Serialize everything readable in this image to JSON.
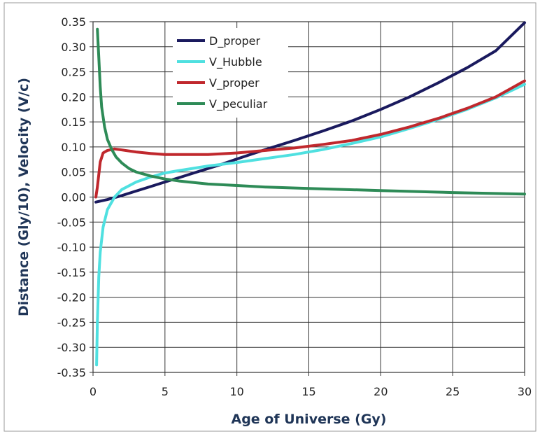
{
  "chart_data": {
    "type": "line",
    "title": "",
    "xlabel": "Age of Universe (Gy)",
    "ylabel": "Distance (Gly/10),  Velocity (V/c)",
    "xlim": [
      0,
      30
    ],
    "ylim": [
      -0.35,
      0.35
    ],
    "x_ticks": [
      "0",
      "5",
      "10",
      "15",
      "20",
      "25",
      "30"
    ],
    "y_ticks": [
      "0.35",
      "0.30",
      "0.25",
      "0.20",
      "0.15",
      "0.10",
      "0.05",
      "0.00",
      "-0.05",
      "-0.10",
      "-0.15",
      "-0.20",
      "-0.25",
      "-0.30",
      "-0.35"
    ],
    "grid": true,
    "legend_position": "top-center",
    "series": [
      {
        "name": "D_proper",
        "color": "#1a1a5e",
        "x": [
          0.2,
          1,
          2,
          3,
          4,
          5,
          6,
          7,
          8,
          9,
          10,
          12,
          14,
          16,
          18,
          20,
          22,
          24,
          26,
          28,
          30
        ],
        "y": [
          -0.01,
          -0.005,
          0.003,
          0.012,
          0.021,
          0.03,
          0.039,
          0.048,
          0.057,
          0.066,
          0.076,
          0.095,
          0.113,
          0.132,
          0.152,
          0.175,
          0.2,
          0.228,
          0.258,
          0.292,
          0.348
        ]
      },
      {
        "name": "V_Hubble",
        "color": "#4fe0e0",
        "x": [
          0.25,
          0.3,
          0.4,
          0.5,
          0.7,
          1.0,
          1.5,
          2,
          3,
          4,
          5,
          6,
          8,
          10,
          12,
          14,
          16,
          18,
          20,
          22,
          24,
          26,
          28,
          30
        ],
        "y": [
          -0.335,
          -0.25,
          -0.16,
          -0.11,
          -0.06,
          -0.025,
          0.0,
          0.015,
          0.03,
          0.04,
          0.048,
          0.053,
          0.062,
          0.069,
          0.077,
          0.085,
          0.095,
          0.107,
          0.12,
          0.137,
          0.155,
          0.175,
          0.198,
          0.225
        ]
      },
      {
        "name": "V_proper",
        "color": "#c0282d",
        "x": [
          0.2,
          0.3,
          0.5,
          0.7,
          1.0,
          1.5,
          2,
          3,
          4,
          5,
          6,
          7,
          8,
          10,
          12,
          14,
          16,
          18,
          20,
          22,
          24,
          26,
          28,
          30
        ],
        "y": [
          0.0,
          0.02,
          0.07,
          0.088,
          0.093,
          0.096,
          0.094,
          0.09,
          0.087,
          0.085,
          0.085,
          0.085,
          0.085,
          0.088,
          0.093,
          0.098,
          0.105,
          0.113,
          0.125,
          0.14,
          0.157,
          0.177,
          0.2,
          0.232
        ]
      },
      {
        "name": "V_peculiar",
        "color": "#2e8b57",
        "x": [
          0.3,
          0.4,
          0.5,
          0.6,
          0.8,
          1.0,
          1.3,
          1.6,
          2,
          2.5,
          3,
          4,
          5,
          6,
          8,
          10,
          12,
          15,
          20,
          25,
          30
        ],
        "y": [
          0.335,
          0.28,
          0.22,
          0.18,
          0.14,
          0.115,
          0.095,
          0.08,
          0.068,
          0.057,
          0.05,
          0.042,
          0.036,
          0.032,
          0.026,
          0.023,
          0.02,
          0.017,
          0.013,
          0.009,
          0.006
        ]
      }
    ]
  }
}
